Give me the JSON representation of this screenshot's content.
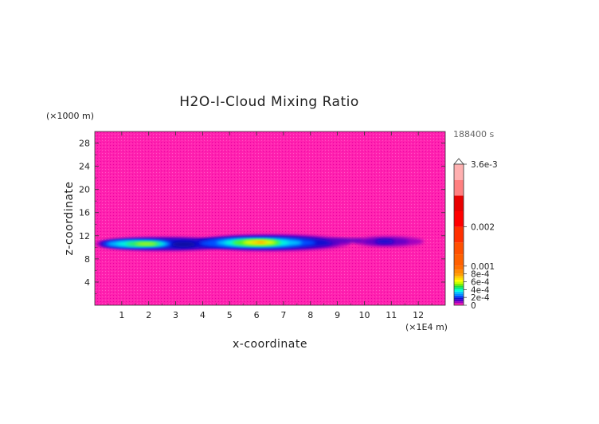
{
  "chart_data": {
    "type": "heatmap",
    "title": "H2O-I-Cloud Mixing Ratio",
    "xlabel": "x-coordinate",
    "ylabel": "z-coordinate",
    "x_unit": "(×1E4 m)",
    "y_unit": "(×1000 m)",
    "time_label": "188400 s",
    "xlim": [
      0,
      13
    ],
    "ylim": [
      0,
      30
    ],
    "x_ticks": [
      1,
      2,
      3,
      4,
      5,
      6,
      7,
      8,
      9,
      10,
      11,
      12
    ],
    "y_ticks": [
      4,
      8,
      12,
      16,
      20,
      24,
      28
    ],
    "colorbar": {
      "tick_labels": [
        "3.6e-3",
        "0.002",
        "0.001",
        "8e-4",
        "6e-4",
        "4e-4",
        "2e-4",
        "0"
      ],
      "tick_values": [
        0.0036,
        0.002,
        0.001,
        0.0008,
        0.0006,
        0.0004,
        0.0002,
        0
      ],
      "max": 0.0036,
      "background_color": "#ff20b0"
    },
    "cloud_band": {
      "z_center": 10.8,
      "x_range": [
        0,
        12
      ],
      "features": [
        {
          "x_center": 1.7,
          "z_center": 10.6,
          "peak_value": 0.0005
        },
        {
          "x_center": 6.1,
          "z_center": 10.8,
          "peak_value": 0.0008
        },
        {
          "x_center": 10.8,
          "z_center": 11.0,
          "peak_value": 0.0002
        }
      ]
    }
  }
}
